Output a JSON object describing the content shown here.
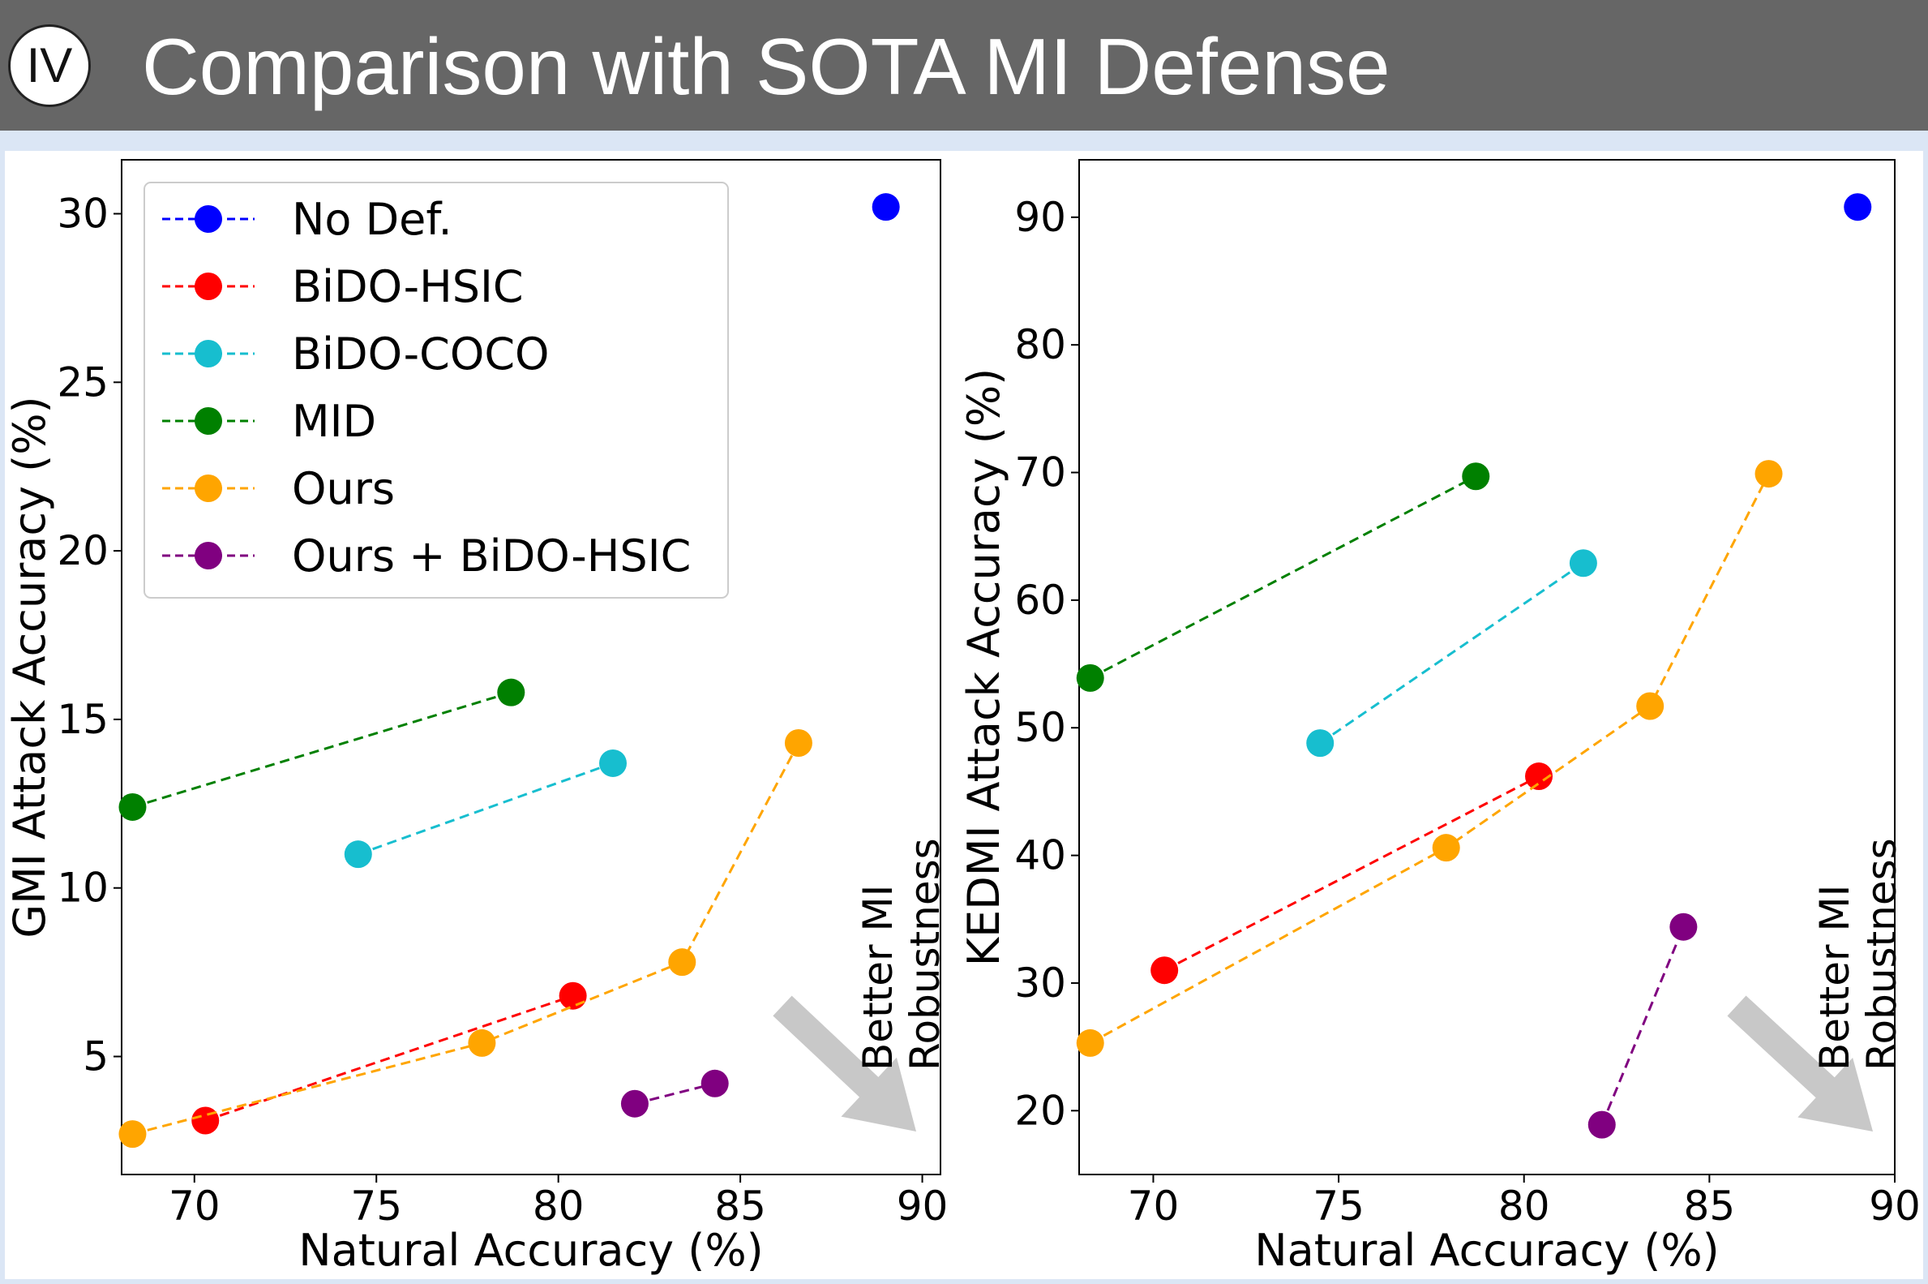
{
  "header": {
    "badge": "IV",
    "title": "Comparison with SOTA MI Defense"
  },
  "colors": {
    "header_bg": "#666666",
    "band": "#dbe6f5",
    "no_def": "#0000ff",
    "bido_hsic": "#ff0000",
    "bido_coco": "#17becf",
    "mid": "#008000",
    "ours": "#ffa500",
    "ours_bido_hsic": "#800080",
    "arrow": "#c8c8c8"
  },
  "chart_data": [
    {
      "type": "scatter",
      "xlabel": "Natural Accuracy (%)",
      "ylabel": "GMI Attack Accuracy (%)",
      "xlim": [
        68,
        90.5
      ],
      "ylim": [
        1.5,
        31.6
      ],
      "xticks": [
        70,
        75,
        80,
        85,
        90
      ],
      "yticks": [
        5,
        10,
        15,
        20,
        25,
        30
      ],
      "legend_position": "upper-left",
      "annotation": {
        "lines": [
          "Better MI",
          "Robustness"
        ],
        "position": "bottom-right"
      },
      "series": [
        {
          "name": "No Def.",
          "color": "#0000ff",
          "x": [
            89.0
          ],
          "y": [
            30.2
          ]
        },
        {
          "name": "BiDO-HSIC",
          "color": "#ff0000",
          "x": [
            70.3,
            80.4
          ],
          "y": [
            3.1,
            6.8
          ]
        },
        {
          "name": "BiDO-COCO",
          "color": "#17becf",
          "x": [
            74.5,
            81.5
          ],
          "y": [
            11.0,
            13.7
          ]
        },
        {
          "name": "MID",
          "color": "#008000",
          "x": [
            68.3,
            78.7
          ],
          "y": [
            12.4,
            15.8
          ]
        },
        {
          "name": "Ours",
          "color": "#ffa500",
          "x": [
            68.3,
            77.9,
            83.4,
            86.6
          ],
          "y": [
            2.7,
            5.4,
            7.8,
            14.3
          ]
        },
        {
          "name": "Ours + BiDO-HSIC",
          "color": "#800080",
          "x": [
            82.1,
            84.3
          ],
          "y": [
            3.6,
            4.2
          ]
        }
      ]
    },
    {
      "type": "scatter",
      "xlabel": "Natural Accuracy (%)",
      "ylabel": "KEDMI Attack Accuracy (%)",
      "xlim": [
        68,
        90
      ],
      "ylim": [
        15,
        94.5
      ],
      "xticks": [
        70,
        75,
        80,
        85,
        90
      ],
      "yticks": [
        20,
        30,
        40,
        50,
        60,
        70,
        80,
        90
      ],
      "legend_position": "none",
      "annotation": {
        "lines": [
          "Better MI",
          "Robustness"
        ],
        "position": "bottom-right"
      },
      "series": [
        {
          "name": "No Def.",
          "color": "#0000ff",
          "x": [
            89.0
          ],
          "y": [
            90.8
          ]
        },
        {
          "name": "BiDO-HSIC",
          "color": "#ff0000",
          "x": [
            70.3,
            80.4
          ],
          "y": [
            31.0,
            46.2
          ]
        },
        {
          "name": "BiDO-COCO",
          "color": "#17becf",
          "x": [
            74.5,
            81.6
          ],
          "y": [
            48.8,
            62.9
          ]
        },
        {
          "name": "MID",
          "color": "#008000",
          "x": [
            68.3,
            78.7
          ],
          "y": [
            53.9,
            69.7
          ]
        },
        {
          "name": "Ours",
          "color": "#ffa500",
          "x": [
            68.3,
            77.9,
            83.4,
            86.6
          ],
          "y": [
            25.3,
            40.6,
            51.7,
            69.9
          ]
        },
        {
          "name": "Ours + BiDO-HSIC",
          "color": "#800080",
          "x": [
            82.1,
            84.3
          ],
          "y": [
            18.9,
            34.4
          ]
        }
      ]
    }
  ]
}
